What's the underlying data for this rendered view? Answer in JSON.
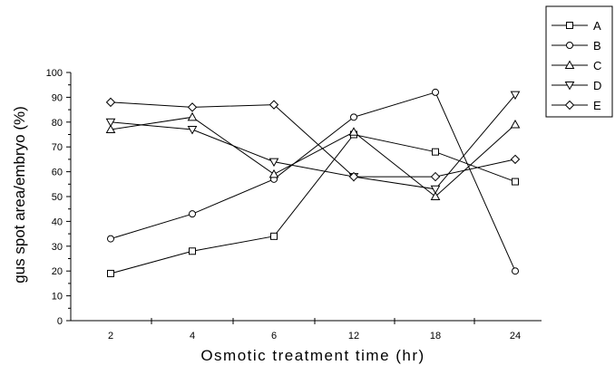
{
  "chart_data": {
    "type": "line",
    "title": "",
    "xlabel": "Osmotic treatment time (hr)",
    "ylabel": "gus spot area/embryo (%)",
    "categories": [
      "2",
      "4",
      "6",
      "12",
      "18",
      "24"
    ],
    "ylim": [
      0,
      100
    ],
    "yticks": [
      0,
      10,
      20,
      30,
      40,
      50,
      60,
      70,
      80,
      90,
      100
    ],
    "grid": false,
    "legend_position": "top-right",
    "series": [
      {
        "name": "A",
        "marker": "square",
        "values": [
          19,
          28,
          34,
          75,
          68,
          56
        ]
      },
      {
        "name": "B",
        "marker": "circle",
        "values": [
          33,
          43,
          57,
          82,
          92,
          20
        ]
      },
      {
        "name": "C",
        "marker": "triangle-up",
        "values": [
          77,
          82,
          59,
          76,
          50,
          79
        ]
      },
      {
        "name": "D",
        "marker": "triangle-down",
        "values": [
          80,
          77,
          64,
          58,
          53,
          91
        ]
      },
      {
        "name": "E",
        "marker": "diamond",
        "values": [
          88,
          86,
          87,
          58,
          58,
          65
        ]
      }
    ],
    "colors": {
      "line": "#000000",
      "marker_fill": "#ffffff",
      "background": "#ffffff"
    }
  }
}
